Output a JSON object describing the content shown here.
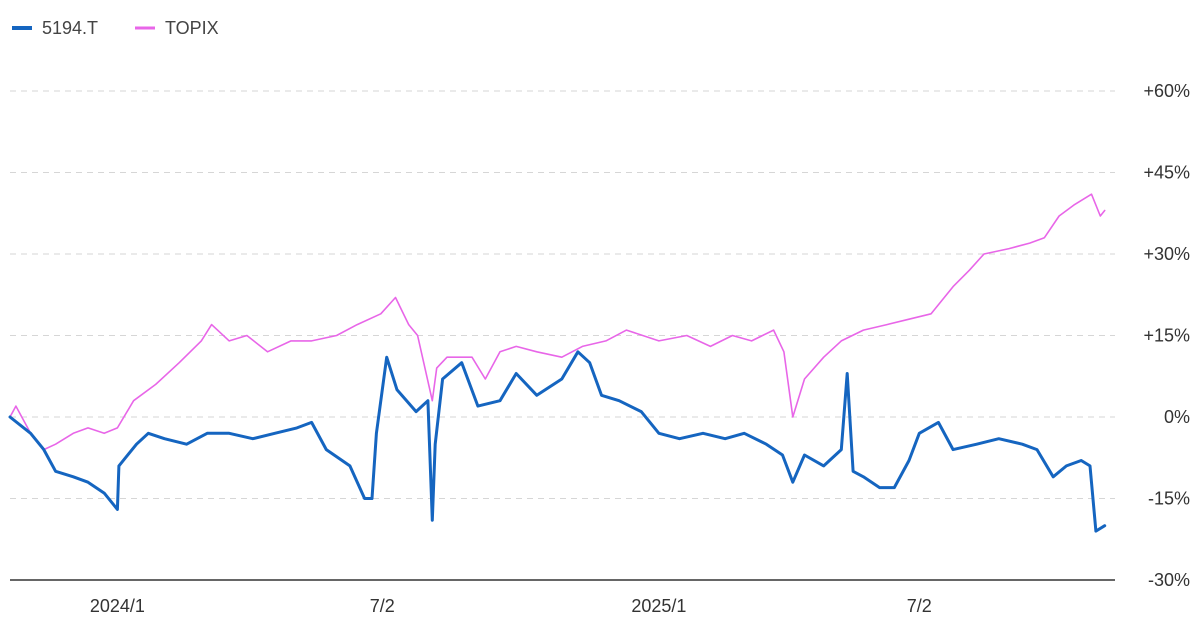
{
  "chart_data": {
    "type": "line",
    "title": "",
    "xlabel": "",
    "ylabel": "",
    "ylim": [
      -30,
      60
    ],
    "y_ticks": [
      60,
      45,
      30,
      15,
      0,
      -15,
      -30
    ],
    "y_tick_labels": [
      "+60%",
      "+45%",
      "+30%",
      "+15%",
      "0%",
      "-15%",
      "-30%"
    ],
    "x_range": [
      "2023-10-23",
      "2025-11-12"
    ],
    "x_ticks": [
      {
        "date": "2024-01-04",
        "label": "2024/1"
      },
      {
        "date": "2024-07-02",
        "label": "7/2"
      },
      {
        "date": "2025-01-06",
        "label": "2025/1"
      },
      {
        "date": "2025-07-02",
        "label": "7/2"
      }
    ],
    "grid": "horizontal-dashed",
    "legend_position": "top-left",
    "series": [
      {
        "name": "5194.T",
        "color": "#1565c0",
        "points": [
          [
            "2023-10-23",
            0
          ],
          [
            "2023-11-06",
            -3
          ],
          [
            "2023-11-15",
            -6
          ],
          [
            "2023-11-23",
            -10
          ],
          [
            "2023-12-05",
            -11
          ],
          [
            "2023-12-15",
            -12
          ],
          [
            "2023-12-26",
            -14
          ],
          [
            "2024-01-04",
            -17
          ],
          [
            "2024-01-05",
            -9
          ],
          [
            "2024-01-17",
            -5
          ],
          [
            "2024-01-25",
            -3
          ],
          [
            "2024-02-05",
            -4
          ],
          [
            "2024-02-20",
            -5
          ],
          [
            "2024-03-05",
            -3
          ],
          [
            "2024-03-20",
            -3
          ],
          [
            "2024-04-05",
            -4
          ],
          [
            "2024-04-20",
            -3
          ],
          [
            "2024-05-05",
            -2
          ],
          [
            "2024-05-15",
            -1
          ],
          [
            "2024-05-25",
            -6
          ],
          [
            "2024-06-10",
            -9
          ],
          [
            "2024-06-20",
            -15
          ],
          [
            "2024-06-25",
            -15
          ],
          [
            "2024-06-28",
            -3
          ],
          [
            "2024-07-05",
            11
          ],
          [
            "2024-07-12",
            5
          ],
          [
            "2024-07-25",
            1
          ],
          [
            "2024-08-02",
            3
          ],
          [
            "2024-08-05",
            -19
          ],
          [
            "2024-08-07",
            -5
          ],
          [
            "2024-08-12",
            7
          ],
          [
            "2024-08-25",
            10
          ],
          [
            "2024-09-05",
            2
          ],
          [
            "2024-09-20",
            3
          ],
          [
            "2024-10-01",
            8
          ],
          [
            "2024-10-15",
            4
          ],
          [
            "2024-11-01",
            7
          ],
          [
            "2024-11-12",
            12
          ],
          [
            "2024-11-20",
            10
          ],
          [
            "2024-11-28",
            4
          ],
          [
            "2024-12-10",
            3
          ],
          [
            "2024-12-25",
            1
          ],
          [
            "2025-01-06",
            -3
          ],
          [
            "2025-01-20",
            -4
          ],
          [
            "2025-02-05",
            -3
          ],
          [
            "2025-02-20",
            -4
          ],
          [
            "2025-03-05",
            -3
          ],
          [
            "2025-03-20",
            -5
          ],
          [
            "2025-03-31",
            -7
          ],
          [
            "2025-04-07",
            -12
          ],
          [
            "2025-04-15",
            -7
          ],
          [
            "2025-04-28",
            -9
          ],
          [
            "2025-05-10",
            -6
          ],
          [
            "2025-05-14",
            8
          ],
          [
            "2025-05-18",
            -10
          ],
          [
            "2025-05-25",
            -11
          ],
          [
            "2025-06-05",
            -13
          ],
          [
            "2025-06-15",
            -13
          ],
          [
            "2025-06-25",
            -8
          ],
          [
            "2025-07-02",
            -3
          ],
          [
            "2025-07-15",
            -1
          ],
          [
            "2025-07-25",
            -6
          ],
          [
            "2025-08-10",
            -5
          ],
          [
            "2025-08-25",
            -4
          ],
          [
            "2025-09-10",
            -5
          ],
          [
            "2025-09-20",
            -6
          ],
          [
            "2025-10-01",
            -11
          ],
          [
            "2025-10-10",
            -9
          ],
          [
            "2025-10-20",
            -8
          ],
          [
            "2025-10-26",
            -9
          ],
          [
            "2025-10-30",
            -21
          ],
          [
            "2025-11-05",
            -20
          ]
        ]
      },
      {
        "name": "TOPIX",
        "color": "#e866e8",
        "points": [
          [
            "2023-10-23",
            0
          ],
          [
            "2023-10-27",
            2
          ],
          [
            "2023-11-06",
            -3
          ],
          [
            "2023-11-15",
            -6
          ],
          [
            "2023-11-23",
            -5
          ],
          [
            "2023-12-05",
            -3
          ],
          [
            "2023-12-15",
            -2
          ],
          [
            "2023-12-26",
            -3
          ],
          [
            "2024-01-04",
            -2
          ],
          [
            "2024-01-15",
            3
          ],
          [
            "2024-01-30",
            6
          ],
          [
            "2024-02-15",
            10
          ],
          [
            "2024-03-01",
            14
          ],
          [
            "2024-03-08",
            17
          ],
          [
            "2024-03-20",
            14
          ],
          [
            "2024-04-01",
            15
          ],
          [
            "2024-04-15",
            12
          ],
          [
            "2024-05-01",
            14
          ],
          [
            "2024-05-15",
            14
          ],
          [
            "2024-06-01",
            15
          ],
          [
            "2024-06-15",
            17
          ],
          [
            "2024-07-01",
            19
          ],
          [
            "2024-07-11",
            22
          ],
          [
            "2024-07-20",
            17
          ],
          [
            "2024-07-26",
            15
          ],
          [
            "2024-08-05",
            3
          ],
          [
            "2024-08-08",
            9
          ],
          [
            "2024-08-15",
            11
          ],
          [
            "2024-09-01",
            11
          ],
          [
            "2024-09-10",
            7
          ],
          [
            "2024-09-20",
            12
          ],
          [
            "2024-10-01",
            13
          ],
          [
            "2024-10-15",
            12
          ],
          [
            "2024-11-01",
            11
          ],
          [
            "2024-11-15",
            13
          ],
          [
            "2024-12-01",
            14
          ],
          [
            "2024-12-15",
            16
          ],
          [
            "2025-01-06",
            14
          ],
          [
            "2025-01-25",
            15
          ],
          [
            "2025-02-10",
            13
          ],
          [
            "2025-02-25",
            15
          ],
          [
            "2025-03-10",
            14
          ],
          [
            "2025-03-25",
            16
          ],
          [
            "2025-04-01",
            12
          ],
          [
            "2025-04-07",
            0
          ],
          [
            "2025-04-15",
            7
          ],
          [
            "2025-04-28",
            11
          ],
          [
            "2025-05-10",
            14
          ],
          [
            "2025-05-25",
            16
          ],
          [
            "2025-06-10",
            17
          ],
          [
            "2025-06-25",
            18
          ],
          [
            "2025-07-10",
            19
          ],
          [
            "2025-07-25",
            24
          ],
          [
            "2025-08-05",
            27
          ],
          [
            "2025-08-15",
            30
          ],
          [
            "2025-09-01",
            31
          ],
          [
            "2025-09-15",
            32
          ],
          [
            "2025-09-25",
            33
          ],
          [
            "2025-10-05",
            37
          ],
          [
            "2025-10-15",
            39
          ],
          [
            "2025-10-27",
            41
          ],
          [
            "2025-11-02",
            37
          ],
          [
            "2025-11-05",
            38
          ]
        ]
      }
    ]
  }
}
